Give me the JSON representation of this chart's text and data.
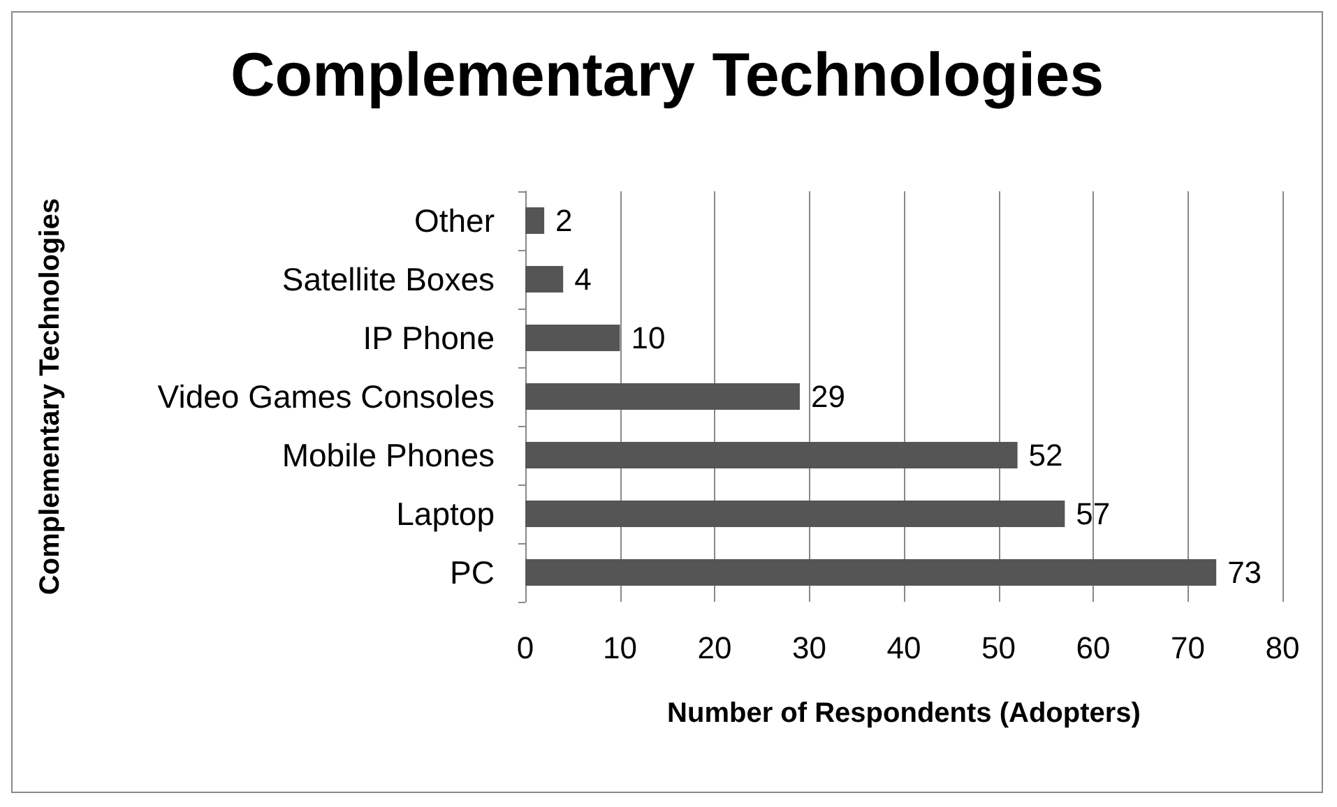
{
  "chart_data": {
    "type": "bar",
    "orientation": "horizontal",
    "title": "Complementary Technologies",
    "xlabel": "Number of Respondents (Adopters)",
    "ylabel": "Complementary Technologies",
    "categories": [
      "Other",
      "Satellite Boxes",
      "IP Phone",
      "Video Games Consoles",
      "Mobile Phones",
      "Laptop",
      "PC"
    ],
    "values": [
      2,
      4,
      10,
      29,
      52,
      57,
      73
    ],
    "color": "#555555",
    "xlim": [
      0,
      80
    ],
    "xticks": [
      0,
      10,
      20,
      30,
      40,
      50,
      60,
      70,
      80
    ],
    "grid": "x",
    "data_labels": true
  }
}
